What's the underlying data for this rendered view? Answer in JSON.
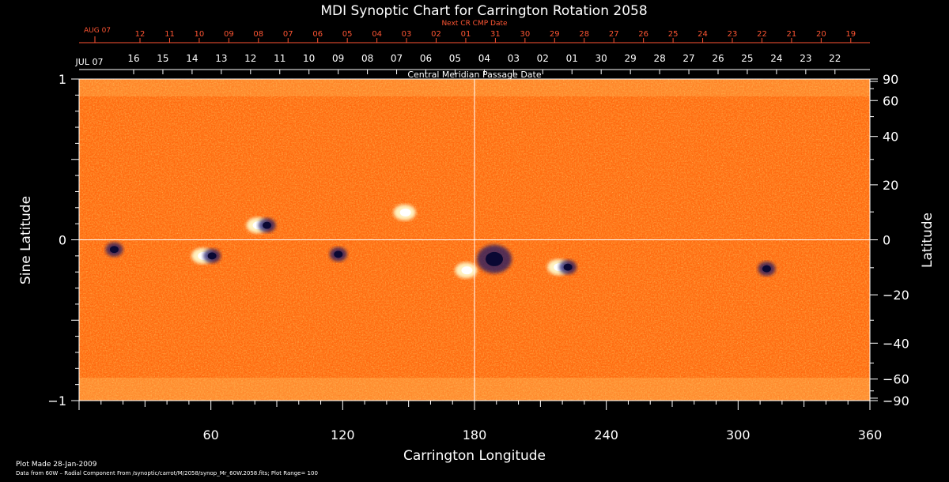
{
  "chart_data": {
    "type": "heatmap",
    "title": "MDI Synoptic Chart for Carrington Rotation 2058",
    "xlabel": "Carrington Longitude",
    "ylabel_left": "Sine Latitude",
    "ylabel_right": "Latitude",
    "xlim": [
      0,
      360
    ],
    "ylim": [
      -1,
      1
    ],
    "x_ticks": [
      60,
      120,
      180,
      240,
      300,
      360
    ],
    "y_left_ticks": [
      {
        "value": 1,
        "label": "1"
      },
      {
        "value": 0,
        "label": "0"
      },
      {
        "value": -1,
        "label": "−1"
      }
    ],
    "y_right_ticks": [
      90,
      60,
      40,
      20,
      0,
      -20,
      -40,
      -60,
      -90
    ],
    "y_right_tick_labels": [
      "90",
      "60",
      "40",
      "20",
      "0",
      "−20",
      "−40",
      "−60",
      "−90"
    ],
    "central_meridian_label": "Central Meridian Passage Date",
    "next_cmp_label": "Next CR CMP Date",
    "top_axis_start": "AUG 07",
    "top_axis_dates": [
      "12",
      "11",
      "10",
      "09",
      "08",
      "07",
      "06",
      "05",
      "04",
      "03",
      "02",
      "01",
      "31",
      "30",
      "29",
      "28",
      "27",
      "26",
      "25",
      "24",
      "23",
      "22",
      "21",
      "20",
      "19"
    ],
    "bottom_axis_start": "JUL 07",
    "bottom_axis_dates": [
      "16",
      "15",
      "14",
      "13",
      "12",
      "11",
      "10",
      "09",
      "08",
      "07",
      "06",
      "05",
      "04",
      "03",
      "02",
      "01",
      "30",
      "29",
      "28",
      "27",
      "26",
      "25",
      "24",
      "23",
      "22"
    ],
    "grid_lines": {
      "longitude": 180,
      "sine_latitude": 0
    },
    "active_regions": [
      {
        "lon": 16,
        "sinlat": -0.06,
        "polarity": "negative"
      },
      {
        "lon": 58,
        "sinlat": -0.1,
        "polarity": "mixed"
      },
      {
        "lon": 83,
        "sinlat": 0.09,
        "polarity": "mixed"
      },
      {
        "lon": 118,
        "sinlat": -0.09,
        "polarity": "negative"
      },
      {
        "lon": 150,
        "sinlat": 0.17,
        "polarity": "positive"
      },
      {
        "lon": 178,
        "sinlat": -0.19,
        "polarity": "positive"
      },
      {
        "lon": 189,
        "sinlat": -0.12,
        "polarity": "negative"
      },
      {
        "lon": 220,
        "sinlat": -0.17,
        "polarity": "mixed"
      },
      {
        "lon": 313,
        "sinlat": -0.18,
        "polarity": "negative"
      }
    ]
  },
  "footer": {
    "plot_made": "Plot Made 28-Jan-2009",
    "data_from": "Data from 60W – Radial Component From /synoptic/carrot/M/2058/synop_Mr_60W.2058.fits; Plot Range= 100"
  },
  "colors": {
    "background": "#000000",
    "map_base": "#ff6a10",
    "map_dark": "#c12a05",
    "map_light": "#ffcc55",
    "negative": "#1a1466",
    "top_axis": "#ff5533"
  }
}
